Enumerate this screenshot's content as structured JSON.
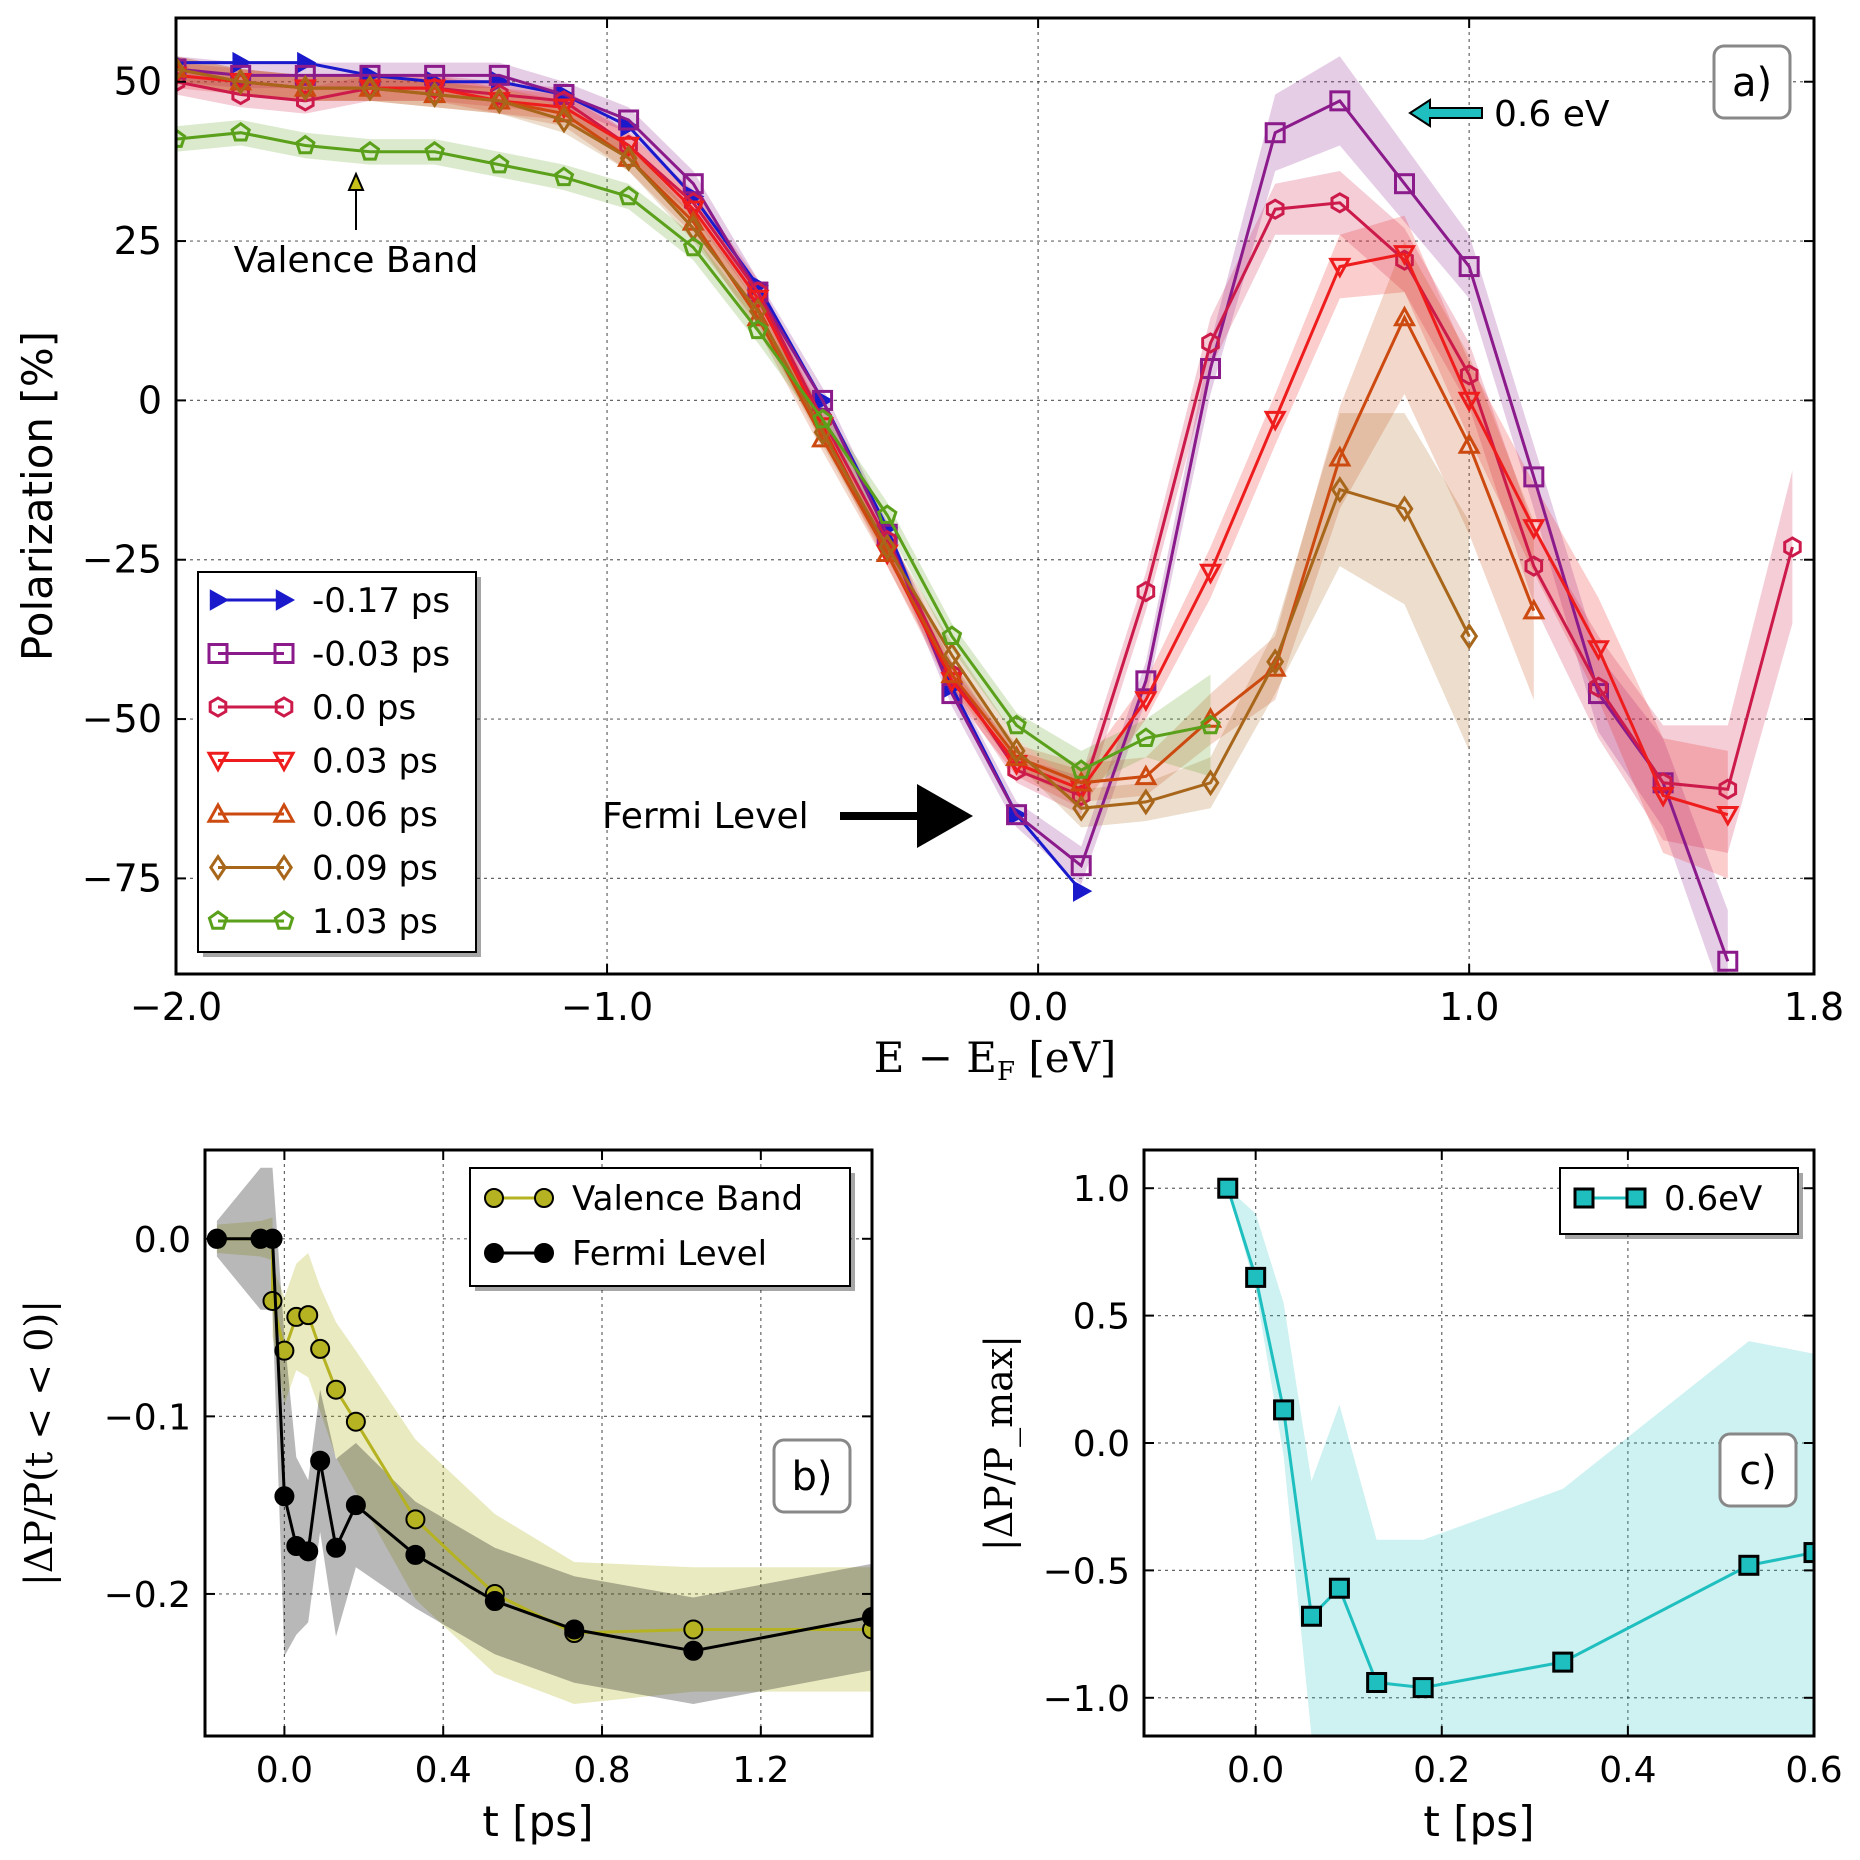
{
  "chart_data": [
    {
      "panel": "a",
      "type": "line",
      "panel_label": "a)",
      "xlabel": "E − E_F [eV]",
      "ylabel": "Polarization [%]",
      "xlim": [
        -2.0,
        1.8
      ],
      "ylim": [
        -90,
        60
      ],
      "xticks": [
        -2.0,
        -1.0,
        0.0,
        1.0,
        1.8
      ],
      "xtick_labels": [
        "−2.0",
        "−1.0",
        "0.0",
        "1.0",
        "1.8"
      ],
      "yticks": [
        50,
        25,
        0,
        -25,
        -50,
        -75
      ],
      "ytick_labels": [
        "50",
        "25",
        "0",
        "−25",
        "−50",
        "−75"
      ],
      "grid": true,
      "legend_position": "lower-left",
      "annotations": [
        {
          "text": "Valence Band",
          "x": -1.6,
          "y": 40,
          "color": "#c8c01a"
        },
        {
          "text": "Fermi Level",
          "x": -0.1,
          "y": -65,
          "color": "#000000"
        },
        {
          "text": "0.6 eV",
          "x": 0.85,
          "y": 45,
          "color": "#1fbfbf"
        }
      ],
      "series": [
        {
          "name": "-0.17 ps",
          "color": "#1a1acc",
          "marker": "tri-right",
          "x": [
            -2.0,
            -1.85,
            -1.7,
            -1.55,
            -1.4,
            -1.25,
            -1.1,
            -0.95,
            -0.8,
            -0.65,
            -0.5,
            -0.35,
            -0.2,
            -0.05,
            0.1
          ],
          "y": [
            53,
            53,
            53,
            51,
            50,
            50,
            48,
            43,
            32,
            18,
            0,
            -20,
            -45,
            -65,
            -77
          ]
        },
        {
          "name": "-0.03 ps",
          "color": "#8b1a8b",
          "marker": "square",
          "x": [
            -2.0,
            -1.85,
            -1.7,
            -1.55,
            -1.4,
            -1.25,
            -1.1,
            -0.95,
            -0.8,
            -0.65,
            -0.5,
            -0.35,
            -0.2,
            -0.05,
            0.1,
            0.25,
            0.4,
            0.55,
            0.7,
            0.85,
            1.0,
            1.15,
            1.3,
            1.45,
            1.6
          ],
          "y": [
            52,
            51,
            51,
            51,
            51,
            51,
            48,
            44,
            34,
            17,
            0,
            -21,
            -46,
            -65,
            -73,
            -44,
            5,
            42,
            47,
            34,
            21,
            -12,
            -46,
            -60,
            -88
          ],
          "band": [
            2,
            2,
            2,
            2,
            2,
            2,
            2,
            2,
            2,
            2,
            2,
            2,
            2,
            2,
            3,
            3,
            4,
            6,
            7,
            6,
            5,
            5,
            6,
            7,
            8
          ]
        },
        {
          "name": "0.0 ps",
          "color": "#cc1a4a",
          "marker": "hexagon",
          "x": [
            -2.0,
            -1.85,
            -1.7,
            -1.55,
            -1.4,
            -1.25,
            -1.1,
            -0.95,
            -0.8,
            -0.65,
            -0.5,
            -0.35,
            -0.2,
            -0.05,
            0.1,
            0.25,
            0.4,
            0.55,
            0.7,
            0.85,
            1.0,
            1.15,
            1.3,
            1.45,
            1.6,
            1.75
          ],
          "y": [
            50,
            48,
            47,
            49,
            49,
            48,
            47,
            40,
            31,
            17,
            -3,
            -22,
            -43,
            -58,
            -62,
            -30,
            9,
            30,
            31,
            22,
            4,
            -26,
            -45,
            -60,
            -61,
            -23
          ],
          "band": [
            2,
            2,
            2,
            2,
            2,
            2,
            2,
            2,
            2,
            2,
            2,
            2,
            2,
            2,
            3,
            3,
            4,
            4,
            5,
            5,
            5,
            6,
            8,
            9,
            10,
            12
          ]
        },
        {
          "name": "0.03 ps",
          "color": "#ee1c1c",
          "marker": "tri-down",
          "x": [
            -2.0,
            -1.85,
            -1.7,
            -1.55,
            -1.4,
            -1.25,
            -1.1,
            -0.95,
            -0.8,
            -0.65,
            -0.5,
            -0.35,
            -0.2,
            -0.05,
            0.1,
            0.25,
            0.4,
            0.55,
            0.7,
            0.85,
            1.0,
            1.15,
            1.3,
            1.45,
            1.6
          ],
          "y": [
            51,
            50,
            49,
            49,
            49,
            47,
            46,
            40,
            30,
            16,
            -4,
            -24,
            -44,
            -57,
            -61,
            -47,
            -27,
            -3,
            21,
            23,
            0,
            -20,
            -39,
            -62,
            -65
          ],
          "band": [
            2,
            2,
            2,
            2,
            2,
            2,
            2,
            2,
            2,
            2,
            2,
            2,
            2,
            2,
            3,
            3,
            4,
            4,
            5,
            6,
            6,
            7,
            8,
            9,
            10
          ]
        },
        {
          "name": "0.06 ps",
          "color": "#cc4a10",
          "marker": "tri-up",
          "x": [
            -2.0,
            -1.85,
            -1.7,
            -1.55,
            -1.4,
            -1.25,
            -1.1,
            -0.95,
            -0.8,
            -0.65,
            -0.5,
            -0.35,
            -0.2,
            -0.05,
            0.1,
            0.25,
            0.4,
            0.55,
            0.7,
            0.85,
            1.0,
            1.15
          ],
          "y": [
            52,
            50,
            49,
            49,
            48,
            47,
            45,
            38,
            28,
            13,
            -6,
            -24,
            -43,
            -56,
            -60,
            -59,
            -50,
            -42,
            -9,
            13,
            -7,
            -33
          ],
          "band": [
            2,
            2,
            2,
            2,
            2,
            2,
            2,
            2,
            2,
            2,
            2,
            2,
            2,
            2,
            3,
            3,
            4,
            5,
            8,
            12,
            14,
            14
          ]
        },
        {
          "name": "0.09 ps",
          "color": "#a8661a",
          "marker": "diamond",
          "x": [
            -2.0,
            -1.85,
            -1.7,
            -1.55,
            -1.4,
            -1.25,
            -1.1,
            -0.95,
            -0.8,
            -0.65,
            -0.5,
            -0.35,
            -0.2,
            -0.05,
            0.1,
            0.25,
            0.4,
            0.55,
            0.7,
            0.85,
            1.0
          ],
          "y": [
            52,
            50,
            49,
            49,
            48,
            47,
            44,
            38,
            27,
            14,
            -5,
            -23,
            -40,
            -55,
            -64,
            -63,
            -60,
            -41,
            -14,
            -17,
            -37
          ],
          "band": [
            2,
            2,
            2,
            2,
            2,
            2,
            2,
            2,
            2,
            2,
            2,
            2,
            2,
            2,
            3,
            3,
            4,
            5,
            12,
            15,
            18
          ]
        },
        {
          "name": "1.03 ps",
          "color": "#5aa01a",
          "marker": "pentagon",
          "x": [
            -2.0,
            -1.85,
            -1.7,
            -1.55,
            -1.4,
            -1.25,
            -1.1,
            -0.95,
            -0.8,
            -0.65,
            -0.5,
            -0.35,
            -0.2,
            -0.05,
            0.1,
            0.25,
            0.4
          ],
          "y": [
            41,
            42,
            40,
            39,
            39,
            37,
            35,
            32,
            24,
            11,
            -3,
            -18,
            -37,
            -51,
            -58,
            -53,
            -51
          ],
          "band": [
            2,
            2,
            2,
            2,
            2,
            2,
            2,
            2,
            2,
            2,
            2,
            2,
            2,
            2,
            3,
            3,
            8
          ]
        }
      ]
    },
    {
      "panel": "b",
      "type": "line",
      "panel_label": "b)",
      "xlabel": "t [ps]",
      "ylabel": "|ΔP/P(t < < 0)|",
      "xlim": [
        -0.2,
        1.48
      ],
      "ylim": [
        -0.28,
        0.05
      ],
      "xticks": [
        0.0,
        0.4,
        0.8,
        1.2
      ],
      "xtick_labels": [
        "0.0",
        "0.4",
        "0.8",
        "1.2"
      ],
      "yticks": [
        0.0,
        -0.1,
        -0.2
      ],
      "ytick_labels": [
        "0.0",
        "−0.1",
        "−0.2"
      ],
      "grid": true,
      "legend_position": "top-right",
      "series": [
        {
          "name": "Valence Band",
          "color": "#b5b322",
          "marker": "circle",
          "x": [
            -0.17,
            -0.06,
            -0.03,
            -0.03,
            0.0,
            0.03,
            0.06,
            0.09,
            0.13,
            0.18,
            0.33,
            0.53,
            0.73,
            1.03,
            1.48
          ],
          "y": [
            0.0,
            0.0,
            0.0,
            -0.035,
            -0.063,
            -0.044,
            -0.043,
            -0.062,
            -0.085,
            -0.103,
            -0.158,
            -0.2,
            -0.222,
            -0.22,
            -0.22
          ],
          "band": [
            0.008,
            0.01,
            0.012,
            0.02,
            0.03,
            0.03,
            0.035,
            0.035,
            0.038,
            0.04,
            0.045,
            0.045,
            0.04,
            0.035,
            0.035
          ]
        },
        {
          "name": "Fermi Level",
          "color": "#000000",
          "marker": "circle",
          "x": [
            -0.17,
            -0.06,
            -0.03,
            0.0,
            0.03,
            0.06,
            0.09,
            0.13,
            0.18,
            0.33,
            0.53,
            0.73,
            1.03,
            1.48
          ],
          "y": [
            0.0,
            0.0,
            0.0,
            -0.145,
            -0.173,
            -0.176,
            -0.125,
            -0.174,
            -0.15,
            -0.178,
            -0.204,
            -0.22,
            -0.232,
            -0.213
          ],
          "band": [
            0.01,
            0.04,
            0.04,
            0.09,
            0.05,
            0.04,
            0.04,
            0.05,
            0.035,
            0.03,
            0.03,
            0.03,
            0.03,
            0.03
          ]
        }
      ]
    },
    {
      "panel": "c",
      "type": "line",
      "panel_label": "c)",
      "xlabel": "t [ps]",
      "ylabel": "|ΔP/P_max|",
      "xlim": [
        -0.12,
        0.6
      ],
      "ylim": [
        -1.15,
        1.15
      ],
      "xticks": [
        0.0,
        0.2,
        0.4,
        0.6
      ],
      "xtick_labels": [
        "0.0",
        "0.2",
        "0.4",
        "0.6"
      ],
      "yticks": [
        1.0,
        0.5,
        0.0,
        -0.5,
        -1.0
      ],
      "ytick_labels": [
        "1.0",
        "0.5",
        "0.0",
        "−0.5",
        "−1.0"
      ],
      "grid": true,
      "legend_position": "top-right",
      "series": [
        {
          "name": "0.6eV",
          "color": "#1fbfbf",
          "marker": "square",
          "x": [
            -0.03,
            0.0,
            0.03,
            0.06,
            0.09,
            0.13,
            0.18,
            0.33,
            0.53,
            0.6
          ],
          "y": [
            1.0,
            0.65,
            0.13,
            -0.68,
            -0.57,
            -0.94,
            -0.96,
            -0.86,
            -0.48,
            -0.43
          ],
          "lower": [
            1.0,
            0.6,
            -0.05,
            -1.15,
            -1.15,
            -1.15,
            -1.15,
            -1.15,
            -1.15,
            -1.15
          ],
          "upper": [
            1.0,
            0.9,
            0.55,
            -0.15,
            0.15,
            -0.38,
            -0.38,
            -0.18,
            0.4,
            0.35
          ]
        }
      ]
    }
  ]
}
